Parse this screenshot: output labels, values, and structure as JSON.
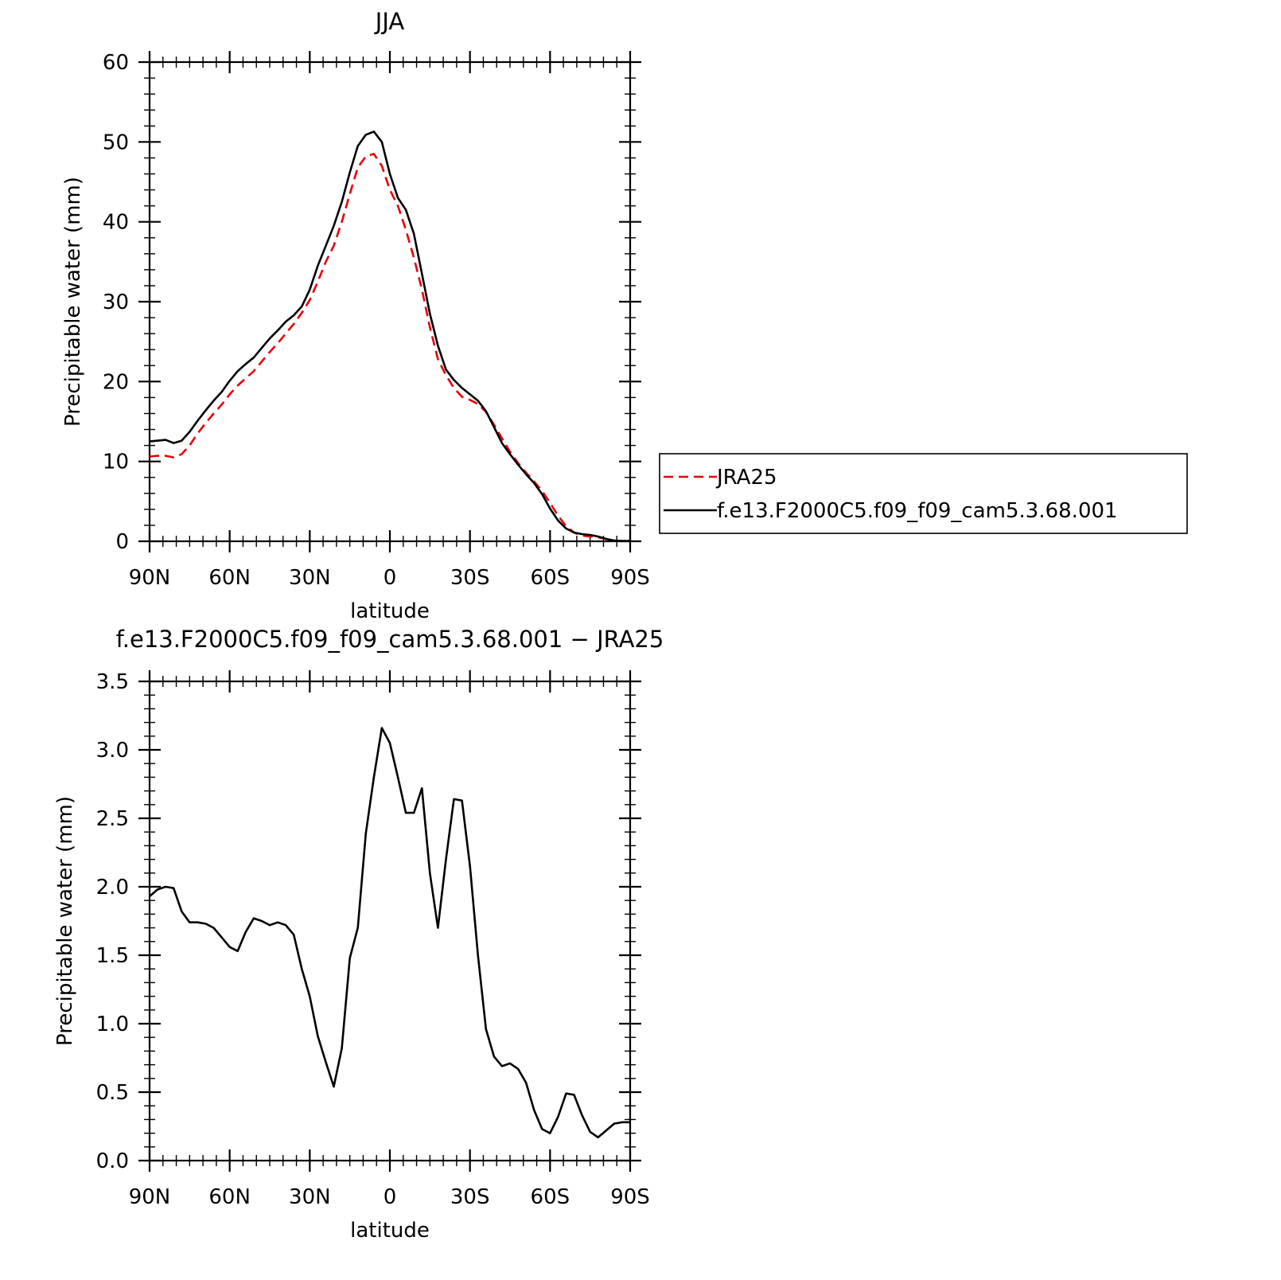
{
  "chart_data": [
    {
      "type": "line",
      "title": "JJA",
      "xlabel": "latitude",
      "ylabel": "Precipitable water (mm)",
      "xlim": [
        90,
        -90
      ],
      "ylim": [
        0,
        60
      ],
      "xticks": [
        90,
        60,
        30,
        0,
        -30,
        -60,
        -90
      ],
      "xtick_labels": [
        "90N",
        "60N",
        "30N",
        "0",
        "30S",
        "60S",
        "90S"
      ],
      "yticks": [
        0,
        10,
        20,
        30,
        40,
        50,
        60
      ],
      "ytick_labels": [
        "0",
        "10",
        "20",
        "30",
        "40",
        "50",
        "60"
      ],
      "legend_position": "right",
      "series": [
        {
          "name": "JRA25",
          "color": "#e8000b",
          "style": "dashed",
          "x": [
            90,
            87,
            84,
            81,
            78,
            75,
            72,
            69,
            66,
            63,
            60,
            57,
            54,
            51,
            48,
            45,
            42,
            39,
            36,
            33,
            30,
            27,
            24,
            21,
            18,
            15,
            12,
            9,
            6,
            3,
            0,
            -3,
            -6,
            -9,
            -12,
            -15,
            -18,
            -21,
            -24,
            -27,
            -30,
            -33,
            -36,
            -39,
            -42,
            -45,
            -48,
            -51,
            -54,
            -57,
            -60,
            -63,
            -66,
            -69,
            -72,
            -75,
            -78,
            -81,
            -84,
            -87,
            -90
          ],
          "y": [
            10.6,
            10.7,
            10.7,
            10.5,
            10.9,
            12.0,
            13.5,
            14.8,
            16.0,
            17.1,
            18.4,
            19.5,
            20.4,
            21.3,
            22.5,
            23.7,
            24.8,
            26.0,
            27.2,
            28.6,
            30.2,
            32.5,
            35.0,
            37.0,
            40.0,
            43.5,
            46.8,
            48.2,
            48.5,
            47.0,
            44.0,
            42.0,
            39.0,
            35.5,
            31.5,
            26.8,
            22.8,
            20.8,
            19.2,
            18.1,
            17.7,
            17.2,
            16.2,
            14.6,
            12.9,
            11.2,
            9.8,
            8.6,
            7.5,
            6.3,
            4.8,
            3.2,
            1.9,
            1.1,
            0.7,
            0.6,
            0.5,
            0.3,
            0.1,
            0.05,
            0.05
          ]
        },
        {
          "name": "f.e13.F2000C5.f09_f09_cam5.3.68.001",
          "color": "#000000",
          "style": "solid",
          "x": [
            90,
            87,
            84,
            81,
            78,
            75,
            72,
            69,
            66,
            63,
            60,
            57,
            54,
            51,
            48,
            45,
            42,
            39,
            36,
            33,
            30,
            27,
            24,
            21,
            18,
            15,
            12,
            9,
            6,
            3,
            0,
            -3,
            -6,
            -9,
            -12,
            -15,
            -18,
            -21,
            -24,
            -27,
            -30,
            -33,
            -36,
            -39,
            -42,
            -45,
            -48,
            -51,
            -54,
            -57,
            -60,
            -63,
            -66,
            -69,
            -72,
            -75,
            -78,
            -81,
            -84,
            -87,
            -90
          ],
          "y": [
            12.5,
            12.6,
            12.7,
            12.3,
            12.6,
            13.7,
            15.1,
            16.4,
            17.6,
            18.7,
            20.1,
            21.3,
            22.2,
            23.0,
            24.2,
            25.4,
            26.4,
            27.5,
            28.3,
            29.4,
            31.5,
            34.5,
            37.0,
            39.5,
            42.5,
            46.2,
            49.5,
            50.9,
            51.3,
            50.0,
            46.0,
            43.0,
            41.5,
            38.5,
            33.5,
            28.5,
            24.5,
            21.5,
            20.2,
            19.2,
            18.4,
            17.6,
            16.3,
            14.3,
            12.3,
            10.9,
            9.6,
            8.4,
            7.3,
            5.9,
            4.1,
            2.6,
            1.6,
            1.1,
            0.9,
            0.8,
            0.6,
            0.3,
            0.1,
            0.05,
            0.05
          ]
        }
      ]
    },
    {
      "type": "line",
      "title": "f.e13.F2000C5.f09_f09_cam5.3.68.001 − JRA25",
      "xlabel": "latitude",
      "ylabel": "Precipitable water (mm)",
      "xlim": [
        90,
        -90
      ],
      "ylim": [
        0,
        3.5
      ],
      "xticks": [
        90,
        60,
        30,
        0,
        -30,
        -60,
        -90
      ],
      "xtick_labels": [
        "90N",
        "60N",
        "30N",
        "0",
        "30S",
        "60S",
        "90S"
      ],
      "yticks": [
        0,
        0.5,
        1,
        1.5,
        2,
        2.5,
        3,
        3.5
      ],
      "ytick_labels": [
        "0.0",
        "0.5",
        "1.0",
        "1.5",
        "2.0",
        "2.5",
        "3.0",
        "3.5"
      ],
      "series": [
        {
          "color": "#000000",
          "style": "solid",
          "x": [
            90,
            87,
            84,
            81,
            78,
            75,
            72,
            69,
            66,
            63,
            60,
            57,
            54,
            51,
            48,
            45,
            42,
            39,
            36,
            33,
            30,
            27,
            24,
            21,
            18,
            15,
            12,
            9,
            6,
            3,
            0,
            -3,
            -6,
            -9,
            -12,
            -15,
            -18,
            -21,
            -24,
            -27,
            -30,
            -33,
            -36,
            -39,
            -42,
            -45,
            -48,
            -51,
            -54,
            -57,
            -60,
            -63,
            -66,
            -69,
            -72,
            -75,
            -78,
            -81,
            -84,
            -87,
            -90
          ],
          "y": [
            1.93,
            1.98,
            2.0,
            1.99,
            1.82,
            1.74,
            1.74,
            1.73,
            1.7,
            1.63,
            1.56,
            1.53,
            1.67,
            1.77,
            1.75,
            1.72,
            1.74,
            1.72,
            1.65,
            1.4,
            1.2,
            0.91,
            0.72,
            0.54,
            0.82,
            1.48,
            1.7,
            2.39,
            2.8,
            3.16,
            3.05,
            2.8,
            2.54,
            2.54,
            2.72,
            2.1,
            1.7,
            2.2,
            2.64,
            2.63,
            2.15,
            1.5,
            0.96,
            0.76,
            0.69,
            0.71,
            0.67,
            0.57,
            0.37,
            0.23,
            0.2,
            0.32,
            0.49,
            0.48,
            0.33,
            0.21,
            0.17,
            0.22,
            0.27,
            0.28,
            0.28
          ]
        }
      ]
    }
  ]
}
